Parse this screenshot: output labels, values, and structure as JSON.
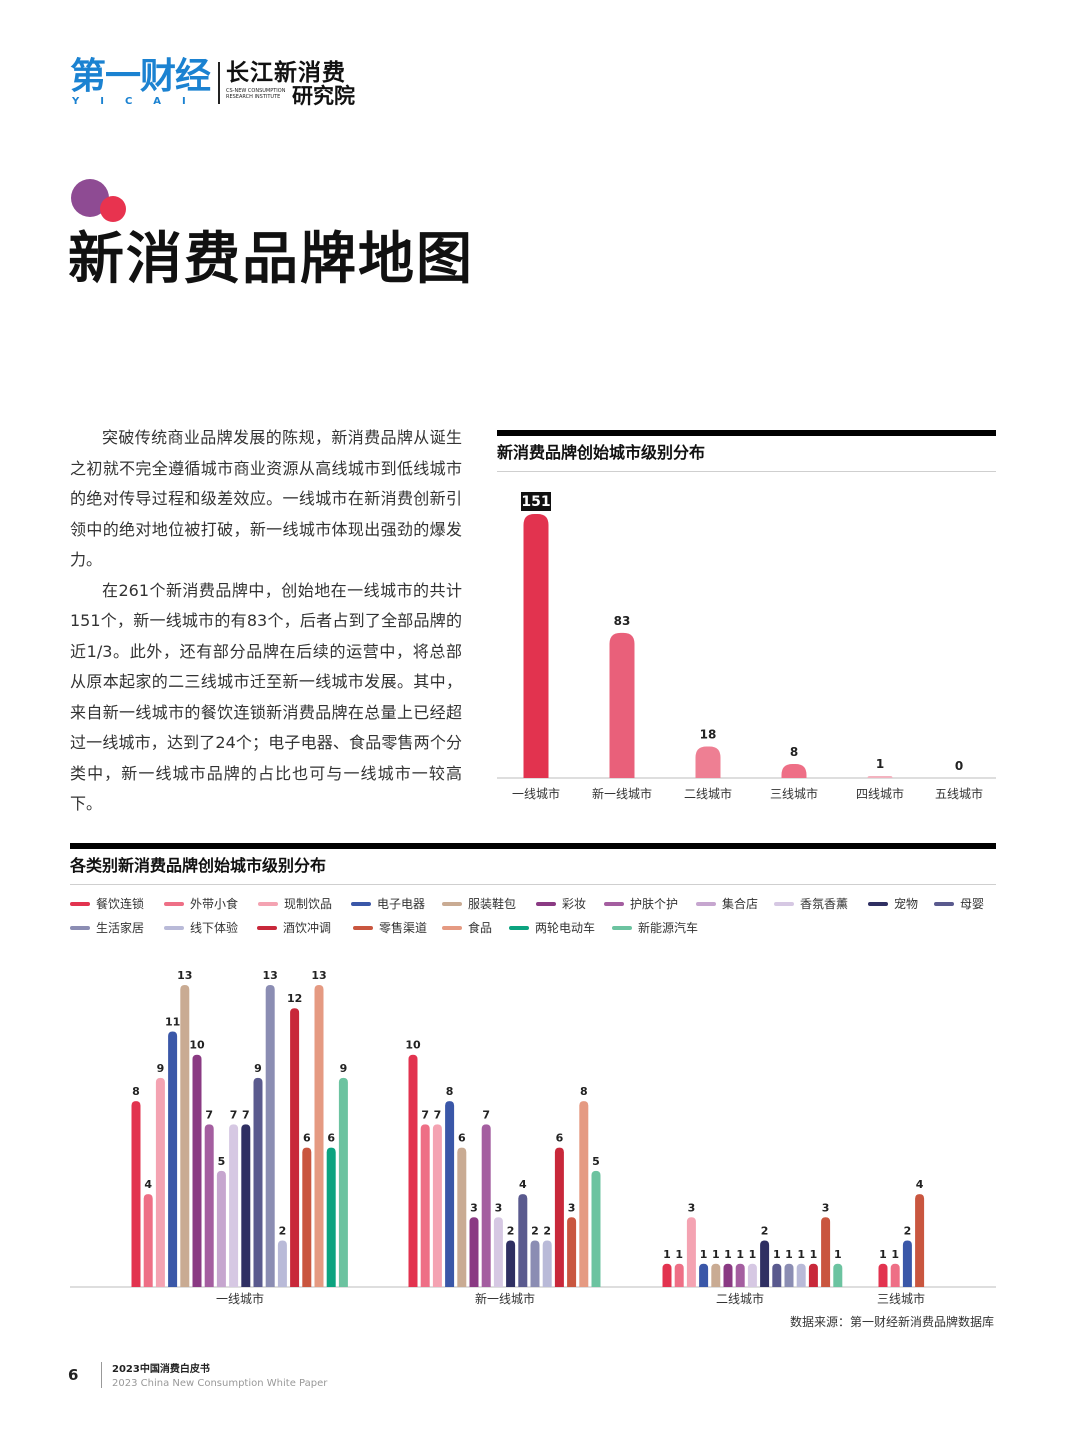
{
  "header": {
    "logo_yicai_cn": "第一财经",
    "logo_yicai_en": "YICAI",
    "logo_cs_cn_line1": "长江新消费",
    "logo_cs_cn_line2": "研究院",
    "logo_cs_en": "CS-NEW CONSUMPTION RESEARCH INSTITUTE"
  },
  "page": {
    "title": "新消费品牌地图",
    "accent_purple": "#8e4b93",
    "accent_red": "#e8334f"
  },
  "body_text": [
    "突破传统商业品牌发展的陈规，新消费品牌从诞生之初就不完全遵循城市商业资源从高线城市到低线城市的绝对传导过程和级差效应。一线城市在新消费创新引领中的绝对地位被打破，新一线城市体现出强劲的爆发力。",
    "在261个新消费品牌中，创始地在一线城市的共计151个，新一线城市的有83个，后者占到了全部品牌的近1/3。此外，还有部分品牌在后续的运营中，将总部从原本起家的二三线城市迁至新一线城市发展。其中，来自新一线城市的餐饮连锁新消费品牌在总量上已经超过一线城市，达到了24个；电子电器、食品零售两个分类中，新一线城市品牌的占比也可与一线城市一较高下。"
  ],
  "chart_data": [
    {
      "type": "bar",
      "title": "新消费品牌创始城市级别分布",
      "categories": [
        "一线城市",
        "新一线城市",
        "二线城市",
        "三线城市",
        "四线城市",
        "五线城市"
      ],
      "values": [
        151,
        83,
        18,
        8,
        1,
        0
      ],
      "colors": [
        "#e2334f",
        "#e9607a",
        "#ee7f93",
        "#ee6f86",
        "#f3b3bf",
        "#f6c9d1"
      ],
      "highlight_label_index": 0,
      "ylim": [
        0,
        151
      ],
      "grid": false
    },
    {
      "type": "bar",
      "title": "各类别新消费品牌创始城市级别分布",
      "categories": [
        "一线城市",
        "新一线城市",
        "二线城市",
        "三线城市"
      ],
      "series": [
        {
          "name": "餐饮连锁",
          "color": "#e2334f",
          "values": [
            8,
            10,
            1,
            1
          ]
        },
        {
          "name": "外带小食",
          "color": "#ee6f86",
          "values": [
            4,
            7,
            1,
            1
          ]
        },
        {
          "name": "现制饮品",
          "color": "#f4a3b2",
          "values": [
            9,
            7,
            3,
            null
          ]
        },
        {
          "name": "电子电器",
          "color": "#3a57a8",
          "values": [
            11,
            8,
            1,
            2
          ]
        },
        {
          "name": "服装鞋包",
          "color": "#c9ab93",
          "values": [
            13,
            6,
            1,
            null
          ]
        },
        {
          "name": "彩妆",
          "color": "#8a3a83",
          "values": [
            10,
            3,
            1,
            null
          ]
        },
        {
          "name": "护肤个护",
          "color": "#a45ea0",
          "values": [
            7,
            7,
            1,
            null
          ]
        },
        {
          "name": "集合店",
          "color": "#c6a6cf",
          "values": [
            5,
            null,
            null,
            null
          ]
        },
        {
          "name": "香氛香薰",
          "color": "#d6c8e3",
          "values": [
            7,
            3,
            1,
            null
          ]
        },
        {
          "name": "宠物",
          "color": "#2f2f62",
          "values": [
            7,
            2,
            2,
            null
          ]
        },
        {
          "name": "母婴",
          "color": "#5a5a8e",
          "values": [
            9,
            4,
            1,
            null
          ]
        },
        {
          "name": "生活家居",
          "color": "#8b8db3",
          "values": [
            13,
            2,
            1,
            null
          ]
        },
        {
          "name": "线下体验",
          "color": "#b9bad8",
          "values": [
            2,
            2,
            1,
            null
          ]
        },
        {
          "name": "酒饮冲调",
          "color": "#c8283a",
          "values": [
            12,
            6,
            1,
            null
          ]
        },
        {
          "name": "零售渠道",
          "color": "#c9563f",
          "values": [
            6,
            3,
            3,
            4
          ]
        },
        {
          "name": "食品",
          "color": "#e59a82",
          "values": [
            13,
            8,
            null,
            null
          ]
        },
        {
          "name": "两轮电动车",
          "color": "#0ba37f",
          "values": [
            6,
            null,
            null,
            null
          ]
        },
        {
          "name": "新能源汽车",
          "color": "#6cc3a0",
          "values": [
            9,
            5,
            1,
            null
          ]
        }
      ],
      "ylim": [
        0,
        13
      ],
      "legend_position": "top",
      "grid": false
    }
  ],
  "source": "数据来源：第一财经新消费品牌数据库",
  "footer": {
    "page_number": "6",
    "title_cn": "2023中国消费白皮书",
    "title_en": "2023 China New Consumption White Paper"
  }
}
